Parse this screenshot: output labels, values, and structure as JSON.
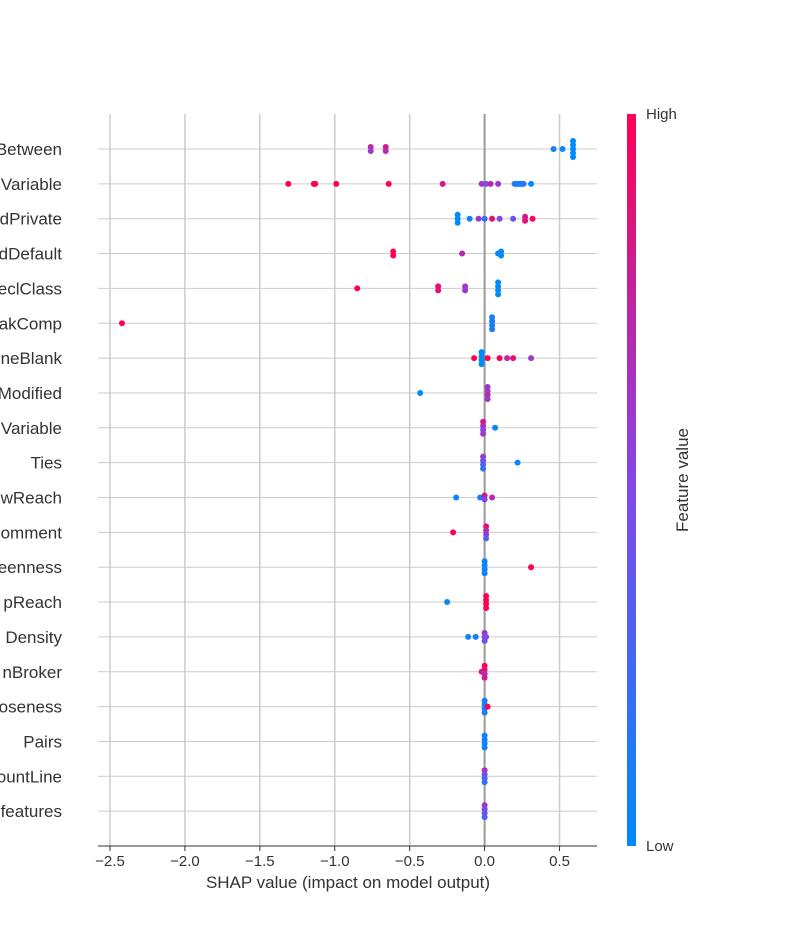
{
  "chart_data": {
    "type": "scatter",
    "subtype": "shap-beeswarm",
    "xlabel": "SHAP value (impact on model output)",
    "xlim": [
      -2.58,
      0.75
    ],
    "xticks": [
      -2.5,
      -2.0,
      -1.5,
      -1.0,
      -0.5,
      0.0,
      0.5
    ],
    "xtick_labels": [
      "−2.5",
      "−2.0",
      "−1.5",
      "−1.0",
      "−0.5",
      "0.0",
      "0.5"
    ],
    "colorbar": {
      "label": "Feature value",
      "high_label": "High",
      "low_label": "Low",
      "high_color": "#ff0052",
      "low_color": "#008bfb"
    },
    "features": [
      {
        "name": "Between",
        "points": [
          [
            -0.76,
            0.7
          ],
          [
            -0.76,
            0.6
          ],
          [
            -0.66,
            0.8
          ],
          [
            -0.66,
            0.7
          ],
          [
            0.46,
            0.1
          ],
          [
            0.52,
            0.05
          ],
          [
            0.59,
            0.0
          ],
          [
            0.59,
            0.0
          ],
          [
            0.59,
            0.0
          ],
          [
            0.59,
            0.0
          ],
          [
            0.59,
            0.0
          ]
        ]
      },
      {
        "name": "Variable",
        "points": [
          [
            -1.31,
            1.0
          ],
          [
            -1.14,
            1.0
          ],
          [
            -1.13,
            1.0
          ],
          [
            -0.99,
            1.0
          ],
          [
            -0.64,
            1.0
          ],
          [
            -0.28,
            0.8
          ],
          [
            -0.02,
            0.6
          ],
          [
            0.01,
            0.5
          ],
          [
            0.04,
            0.7
          ],
          [
            0.09,
            0.6
          ],
          [
            0.2,
            0.2
          ],
          [
            0.21,
            0.1
          ],
          [
            0.22,
            0.1
          ],
          [
            0.23,
            0.0
          ],
          [
            0.24,
            0.1
          ],
          [
            0.25,
            0.2
          ],
          [
            0.26,
            0.1
          ],
          [
            0.31,
            0.0
          ]
        ]
      },
      {
        "name": "dPrivate",
        "points": [
          [
            -0.18,
            0.0
          ],
          [
            -0.18,
            0.0
          ],
          [
            -0.18,
            0.0
          ],
          [
            -0.1,
            0.05
          ],
          [
            -0.04,
            0.6
          ],
          [
            0.0,
            0.2
          ],
          [
            0.05,
            0.9
          ],
          [
            0.1,
            0.5
          ],
          [
            0.19,
            0.4
          ],
          [
            0.27,
            0.8
          ],
          [
            0.27,
            0.9
          ],
          [
            0.32,
            1.0
          ]
        ]
      },
      {
        "name": "dDefault",
        "points": [
          [
            -0.61,
            1.0
          ],
          [
            -0.61,
            1.0
          ],
          [
            -0.15,
            0.7
          ],
          [
            0.09,
            0.05
          ],
          [
            0.1,
            0.0
          ],
          [
            0.11,
            0.0
          ],
          [
            0.11,
            0.0
          ]
        ]
      },
      {
        "name": "eclClass",
        "points": [
          [
            -0.85,
            1.0
          ],
          [
            -0.31,
            0.9
          ],
          [
            -0.31,
            0.9
          ],
          [
            -0.13,
            0.6
          ],
          [
            -0.13,
            0.6
          ],
          [
            0.09,
            0.0
          ],
          [
            0.09,
            0.0
          ],
          [
            0.09,
            0.0
          ],
          [
            0.09,
            0.0
          ]
        ]
      },
      {
        "name": "akComp",
        "points": [
          [
            -2.42,
            1.0
          ],
          [
            0.05,
            0.1
          ],
          [
            0.05,
            0.1
          ],
          [
            0.05,
            0.1
          ],
          [
            0.05,
            0.1
          ]
        ]
      },
      {
        "name": "neBlank",
        "points": [
          [
            -0.07,
            1.0
          ],
          [
            -0.02,
            0.0
          ],
          [
            -0.02,
            0.0
          ],
          [
            -0.02,
            0.0
          ],
          [
            -0.02,
            0.0
          ],
          [
            0.02,
            1.0
          ],
          [
            0.1,
            1.0
          ],
          [
            0.15,
            0.7
          ],
          [
            0.19,
            0.9
          ],
          [
            0.31,
            0.6
          ]
        ]
      },
      {
        "name": "Modified",
        "points": [
          [
            -0.43,
            0.0
          ],
          [
            0.02,
            0.6
          ],
          [
            0.02,
            0.6
          ],
          [
            0.02,
            0.7
          ],
          [
            0.02,
            0.6
          ]
        ]
      },
      {
        "name": "Variable",
        "points": [
          [
            -0.01,
            0.8
          ],
          [
            -0.01,
            0.7
          ],
          [
            -0.01,
            0.5
          ],
          [
            -0.01,
            0.6
          ],
          [
            0.07,
            0.05
          ]
        ]
      },
      {
        "name": "Ties",
        "points": [
          [
            -0.01,
            0.6
          ],
          [
            -0.01,
            0.4
          ],
          [
            -0.01,
            0.3
          ],
          [
            -0.01,
            0.2
          ],
          [
            0.22,
            0.05
          ]
        ]
      },
      {
        "name": "wReach",
        "points": [
          [
            -0.19,
            0.05
          ],
          [
            -0.03,
            0.1
          ],
          [
            0.0,
            0.8
          ],
          [
            0.05,
            0.7
          ],
          [
            0.0,
            0.5
          ]
        ]
      },
      {
        "name": "omment",
        "points": [
          [
            -0.21,
            1.0
          ],
          [
            0.01,
            0.9
          ],
          [
            0.01,
            0.7
          ],
          [
            0.01,
            0.6
          ],
          [
            0.01,
            0.3
          ]
        ]
      },
      {
        "name": "eenness",
        "points": [
          [
            0.0,
            0.05
          ],
          [
            0.0,
            0.05
          ],
          [
            0.0,
            0.05
          ],
          [
            0.0,
            0.05
          ],
          [
            0.31,
            1.0
          ]
        ]
      },
      {
        "name": "pReach",
        "points": [
          [
            -0.25,
            0.05
          ],
          [
            0.01,
            1.0
          ],
          [
            0.01,
            1.0
          ],
          [
            0.01,
            1.0
          ],
          [
            0.01,
            1.0
          ]
        ]
      },
      {
        "name": "Density",
        "points": [
          [
            -0.11,
            0.05
          ],
          [
            -0.06,
            0.1
          ],
          [
            0.0,
            0.6
          ],
          [
            0.0,
            0.5
          ],
          [
            0.0,
            0.4
          ],
          [
            0.01,
            0.5
          ]
        ]
      },
      {
        "name": "nBroker",
        "points": [
          [
            -0.02,
            0.8
          ],
          [
            0.0,
            1.0
          ],
          [
            0.0,
            0.9
          ],
          [
            0.0,
            0.7
          ],
          [
            0.0,
            0.8
          ]
        ]
      },
      {
        "name": "oseness",
        "points": [
          [
            0.0,
            0.05
          ],
          [
            0.0,
            0.05
          ],
          [
            0.0,
            0.05
          ],
          [
            0.02,
            1.0
          ],
          [
            0.0,
            0.1
          ]
        ]
      },
      {
        "name": "Pairs",
        "points": [
          [
            0.0,
            0.05
          ],
          [
            0.0,
            0.05
          ],
          [
            0.0,
            0.05
          ],
          [
            0.0,
            0.05
          ]
        ]
      },
      {
        "name": "ountLine",
        "points": [
          [
            0.0,
            0.7
          ],
          [
            0.0,
            0.4
          ],
          [
            0.0,
            0.3
          ],
          [
            0.0,
            0.2
          ]
        ]
      },
      {
        "name": "features",
        "points": [
          [
            0.0,
            0.6
          ],
          [
            0.0,
            0.5
          ],
          [
            0.0,
            0.4
          ],
          [
            0.0,
            0.3
          ]
        ]
      }
    ]
  }
}
